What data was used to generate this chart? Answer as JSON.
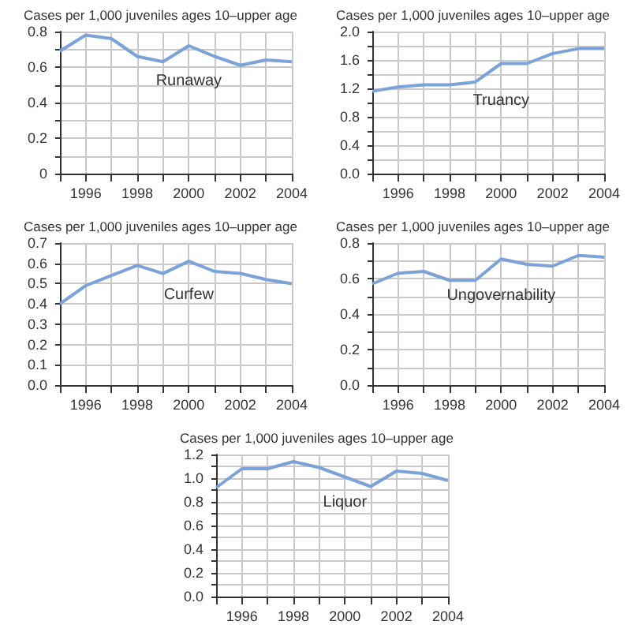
{
  "chart_data": [
    {
      "type": "line",
      "ylabel": "Cases per 1,000 juveniles ages 10–upper age",
      "x": [
        1995,
        1996,
        1997,
        1998,
        1999,
        2000,
        2001,
        2002,
        2003,
        2004
      ],
      "xlim": [
        1995,
        2004
      ],
      "xticks": [
        {
          "value": 1995,
          "label": null
        },
        1996,
        {
          "value": 1997,
          "label": null
        },
        1998,
        {
          "value": 1999,
          "label": null
        },
        2000,
        {
          "value": 2001,
          "label": null
        },
        2002,
        {
          "value": 2003,
          "label": null
        },
        2004
      ],
      "ylim": [
        0,
        0.8
      ],
      "yticks": [
        0,
        {
          "value": 0.1,
          "label": null
        },
        0.2,
        {
          "value": 0.3,
          "label": null
        },
        0.4,
        {
          "value": 0.5,
          "label": null
        },
        0.6,
        {
          "value": 0.7,
          "label": null
        },
        0.8
      ],
      "grid": true,
      "series": [
        {
          "name": "Runaway",
          "color": "#7ba3d9",
          "values": [
            0.69,
            0.78,
            0.76,
            0.66,
            0.63,
            0.72,
            0.66,
            0.61,
            0.64,
            0.63
          ]
        }
      ]
    },
    {
      "type": "line",
      "ylabel": "Cases per 1,000 juveniles ages 10–upper age",
      "x": [
        1995,
        1996,
        1997,
        1998,
        1999,
        2000,
        2001,
        2002,
        2003,
        2004
      ],
      "xlim": [
        1995,
        2004
      ],
      "xticks": [
        {
          "value": 1995,
          "label": null
        },
        1996,
        {
          "value": 1997,
          "label": null
        },
        1998,
        {
          "value": 1999,
          "label": null
        },
        2000,
        {
          "value": 2001,
          "label": null
        },
        2002,
        {
          "value": 2003,
          "label": null
        },
        2004
      ],
      "ylim": [
        0,
        2
      ],
      "yticks": [
        {
          "value": 0,
          "label": "0.0"
        },
        {
          "value": 0.2,
          "label": null
        },
        0.4,
        {
          "value": 0.6,
          "label": null
        },
        0.8,
        {
          "value": 1,
          "label": null
        },
        1.2,
        {
          "value": 1.4,
          "label": null
        },
        1.6,
        {
          "value": 1.8,
          "label": null
        },
        {
          "value": 2,
          "label": "2.0"
        }
      ],
      "grid": true,
      "series": [
        {
          "name": "Truancy",
          "color": "#7ba3d9",
          "values": [
            1.16,
            1.22,
            1.25,
            1.25,
            1.29,
            1.55,
            1.55,
            1.69,
            1.76,
            1.76
          ]
        }
      ]
    },
    {
      "type": "line",
      "ylabel": "Cases per 1,000 juveniles ages 10–upper age",
      "x": [
        1995,
        1996,
        1997,
        1998,
        1999,
        2000,
        2001,
        2002,
        2003,
        2004
      ],
      "xlim": [
        1995,
        2004
      ],
      "xticks": [
        {
          "value": 1995,
          "label": null
        },
        1996,
        {
          "value": 1997,
          "label": null
        },
        1998,
        {
          "value": 1999,
          "label": null
        },
        2000,
        {
          "value": 2001,
          "label": null
        },
        2002,
        {
          "value": 2003,
          "label": null
        },
        2004
      ],
      "ylim": [
        0,
        0.7
      ],
      "yticks": [
        {
          "value": 0,
          "label": "0.0"
        },
        0.1,
        0.2,
        0.3,
        0.4,
        0.5,
        0.6,
        0.7
      ],
      "grid": true,
      "series": [
        {
          "name": "Curfew",
          "color": "#7ba3d9",
          "values": [
            0.4,
            0.49,
            0.54,
            0.59,
            0.55,
            0.61,
            0.56,
            0.55,
            0.52,
            0.5
          ]
        }
      ]
    },
    {
      "type": "line",
      "ylabel": "Cases per 1,000 juveniles ages 10–upper age",
      "x": [
        1995,
        1996,
        1997,
        1998,
        1999,
        2000,
        2001,
        2002,
        2003,
        2004
      ],
      "xlim": [
        1995,
        2004
      ],
      "xticks": [
        {
          "value": 1995,
          "label": null
        },
        1996,
        {
          "value": 1997,
          "label": null
        },
        1998,
        {
          "value": 1999,
          "label": null
        },
        2000,
        {
          "value": 2001,
          "label": null
        },
        2002,
        {
          "value": 2003,
          "label": null
        },
        2004
      ],
      "ylim": [
        0,
        0.8
      ],
      "yticks": [
        {
          "value": 0,
          "label": "0.0"
        },
        {
          "value": 0.1,
          "label": null
        },
        0.2,
        {
          "value": 0.3,
          "label": null
        },
        0.4,
        {
          "value": 0.5,
          "label": null
        },
        0.6,
        {
          "value": 0.7,
          "label": null
        },
        0.8
      ],
      "grid": true,
      "series": [
        {
          "name": "Ungovernability",
          "color": "#7ba3d9",
          "values": [
            0.57,
            0.63,
            0.64,
            0.59,
            0.59,
            0.71,
            0.68,
            0.67,
            0.73,
            0.72
          ]
        }
      ]
    },
    {
      "type": "line",
      "ylabel": "Cases per 1,000 juveniles ages 10–upper age",
      "x": [
        1995,
        1996,
        1997,
        1998,
        1999,
        2000,
        2001,
        2002,
        2003,
        2004
      ],
      "xlim": [
        1995,
        2004
      ],
      "xticks": [
        {
          "value": 1995,
          "label": null
        },
        1996,
        {
          "value": 1997,
          "label": null
        },
        1998,
        {
          "value": 1999,
          "label": null
        },
        2000,
        {
          "value": 2001,
          "label": null
        },
        2002,
        {
          "value": 2003,
          "label": null
        },
        2004
      ],
      "ylim": [
        0,
        1.2
      ],
      "yticks": [
        {
          "value": 0,
          "label": "0.0"
        },
        {
          "value": 0.1,
          "label": null
        },
        0.2,
        {
          "value": 0.3,
          "label": null
        },
        0.4,
        {
          "value": 0.5,
          "label": null
        },
        0.6,
        {
          "value": 0.7,
          "label": null
        },
        0.8,
        {
          "value": 0.9,
          "label": null
        },
        {
          "value": 1,
          "label": "1.0"
        },
        {
          "value": 1.1,
          "label": null
        },
        1.2
      ],
      "grid": true,
      "series": [
        {
          "name": "Liquor",
          "color": "#7ba3d9",
          "values": [
            0.92,
            1.08,
            1.08,
            1.14,
            1.09,
            1.01,
            0.93,
            1.06,
            1.04,
            0.98
          ]
        }
      ]
    }
  ]
}
